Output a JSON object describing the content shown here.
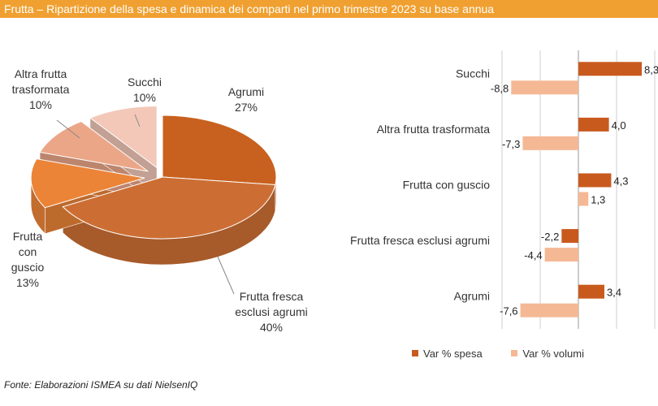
{
  "header": {
    "title": "Frutta – Ripartizione della spesa e dinamica dei comparti nel primo trimestre 2023 su base annua"
  },
  "source": "Fonte: Elaborazioni ISMEA su dati NielsenIQ",
  "colors": {
    "banner": "#f0a030",
    "spesa": "#c85a1e",
    "volumi": "#f5b895"
  },
  "chart_data": [
    {
      "type": "pie",
      "slices": [
        {
          "label_lines": [
            "Agrumi",
            "27%"
          ],
          "value": 27,
          "color": "#c8611f"
        },
        {
          "label_lines": [
            "Frutta fresca",
            "esclusi agrumi",
            "40%"
          ],
          "value": 40,
          "color": "#cc6e33"
        },
        {
          "label_lines": [
            "Frutta",
            "con",
            "guscio",
            "13%"
          ],
          "value": 13,
          "color": "#ec8438"
        },
        {
          "label_lines": [
            "Altra frutta",
            "trasformata",
            "10%"
          ],
          "value": 10,
          "color": "#eba688"
        },
        {
          "label_lines": [
            "Succhi",
            "10%"
          ],
          "value": 10,
          "color": "#f3c8b8"
        }
      ]
    },
    {
      "type": "bar",
      "orientation": "horizontal",
      "categories": [
        "Succhi",
        "Altra frutta trasformata",
        "Frutta con guscio",
        "Frutta fresca esclusi agrumi",
        "Agrumi"
      ],
      "series": [
        {
          "name": "Var % spesa",
          "values": [
            8.3,
            4.0,
            4.3,
            -2.2,
            3.4
          ],
          "labels": [
            "8,3",
            "4,0",
            "4,3",
            "-2,2",
            "3,4"
          ],
          "color": "#c85a1e"
        },
        {
          "name": "Var % volumi",
          "values": [
            -8.8,
            -7.3,
            1.3,
            -4.4,
            -7.6
          ],
          "labels": [
            "-8,8",
            "-7,3",
            "1,3",
            "-4,4",
            "-7,6"
          ],
          "color": "#f5b895"
        }
      ],
      "xlim": [
        -10,
        10
      ],
      "legend": "bottom"
    }
  ]
}
